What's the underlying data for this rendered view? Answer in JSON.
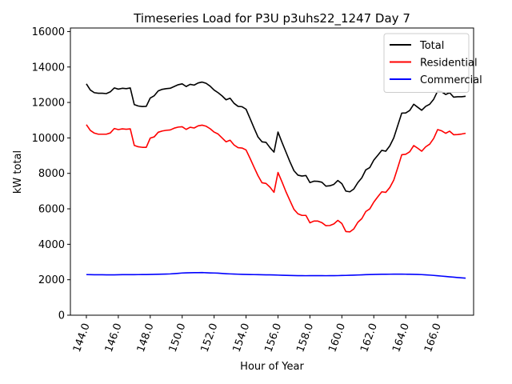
{
  "chart_data": {
    "type": "line",
    "title": "Timeseries Load for P3U p3uhs22_1247  Day 7",
    "xlabel": "Hour of Year",
    "ylabel": "kW total",
    "xlim": [
      143.0,
      168.25
    ],
    "ylim": [
      0,
      16200
    ],
    "xticks": [
      144.0,
      146.0,
      148.0,
      150.0,
      152.0,
      154.0,
      156.0,
      158.0,
      160.0,
      162.0,
      164.0,
      166.0
    ],
    "xtick_labels": [
      "144.0",
      "146.0",
      "148.0",
      "150.0",
      "152.0",
      "154.0",
      "156.0",
      "158.0",
      "160.0",
      "162.0",
      "164.0",
      "166.0"
    ],
    "yticks": [
      0,
      2000,
      4000,
      6000,
      8000,
      10000,
      12000,
      14000,
      16000
    ],
    "ytick_labels": [
      "0",
      "2000",
      "4000",
      "6000",
      "8000",
      "10000",
      "12000",
      "14000",
      "16000"
    ],
    "grid": false,
    "legend_position": "top-right",
    "x": [
      144.0,
      144.25,
      144.5,
      144.75,
      145.0,
      145.25,
      145.5,
      145.75,
      146.0,
      146.25,
      146.5,
      146.75,
      147.0,
      147.25,
      147.5,
      147.75,
      148.0,
      148.25,
      148.5,
      148.75,
      149.0,
      149.25,
      149.5,
      149.75,
      150.0,
      150.25,
      150.5,
      150.75,
      151.0,
      151.25,
      151.5,
      151.75,
      152.0,
      152.25,
      152.5,
      152.75,
      153.0,
      153.25,
      153.5,
      153.75,
      154.0,
      154.25,
      154.5,
      154.75,
      155.0,
      155.25,
      155.5,
      155.75,
      156.0,
      156.25,
      156.5,
      156.75,
      157.0,
      157.25,
      157.5,
      157.75,
      158.0,
      158.25,
      158.5,
      158.75,
      159.0,
      159.25,
      159.5,
      159.75,
      160.0,
      160.25,
      160.5,
      160.75,
      161.0,
      161.25,
      161.5,
      161.75,
      162.0,
      162.25,
      162.5,
      162.75,
      163.0,
      163.25,
      163.5,
      163.75,
      164.0,
      164.25,
      164.5,
      164.75,
      165.0,
      165.25,
      165.5,
      165.75,
      166.0,
      166.25,
      166.5,
      166.75,
      167.0,
      167.25,
      167.5,
      167.75
    ],
    "series": [
      {
        "name": "Total",
        "color": "#000000",
        "values": [
          13050,
          12700,
          12550,
          12520,
          12520,
          12500,
          12600,
          12820,
          12750,
          12800,
          12780,
          12820,
          11880,
          11800,
          11770,
          11780,
          12250,
          12380,
          12650,
          12740,
          12780,
          12800,
          12900,
          13000,
          13050,
          12900,
          13020,
          12980,
          13100,
          13150,
          13080,
          12920,
          12700,
          12550,
          12370,
          12150,
          12240,
          11950,
          11780,
          11760,
          11620,
          11100,
          10560,
          10050,
          9780,
          9750,
          9450,
          9200,
          10330,
          9750,
          9200,
          8650,
          8150,
          7900,
          7850,
          7880,
          7480,
          7560,
          7550,
          7500,
          7280,
          7300,
          7380,
          7600,
          7420,
          7000,
          6960,
          7120,
          7480,
          7750,
          8200,
          8330,
          8750,
          9020,
          9300,
          9250,
          9550,
          10000,
          10700,
          11400,
          11410,
          11550,
          11900,
          11730,
          11560,
          11780,
          11900,
          12180,
          12650,
          12600,
          12450,
          12550,
          12300,
          12320,
          12320,
          12350
        ]
      },
      {
        "name": "Residential",
        "color": "#ff0000",
        "values": [
          10750,
          10420,
          10270,
          10210,
          10210,
          10210,
          10280,
          10530,
          10470,
          10510,
          10490,
          10510,
          9580,
          9500,
          9470,
          9470,
          9990,
          10060,
          10320,
          10390,
          10430,
          10450,
          10550,
          10610,
          10630,
          10480,
          10600,
          10560,
          10680,
          10720,
          10660,
          10520,
          10330,
          10220,
          10000,
          9780,
          9870,
          9600,
          9450,
          9430,
          9320,
          8850,
          8350,
          7870,
          7470,
          7430,
          7220,
          6930,
          8050,
          7520,
          6960,
          6460,
          5970,
          5720,
          5630,
          5630,
          5210,
          5310,
          5310,
          5220,
          5050,
          5060,
          5150,
          5350,
          5170,
          4720,
          4700,
          4870,
          5240,
          5450,
          5850,
          6000,
          6380,
          6680,
          6960,
          6930,
          7200,
          7620,
          8320,
          9050,
          9080,
          9220,
          9570,
          9420,
          9250,
          9500,
          9650,
          9970,
          10470,
          10400,
          10260,
          10380,
          10180,
          10190,
          10220,
          10260
        ]
      },
      {
        "name": "Commercial",
        "color": "#0000ff",
        "values": [
          2290,
          2285,
          2280,
          2282,
          2283,
          2278,
          2275,
          2278,
          2280,
          2285,
          2285,
          2288,
          2288,
          2290,
          2292,
          2295,
          2300,
          2305,
          2310,
          2315,
          2320,
          2330,
          2345,
          2360,
          2380,
          2390,
          2395,
          2398,
          2400,
          2405,
          2395,
          2385,
          2380,
          2370,
          2355,
          2340,
          2330,
          2320,
          2312,
          2305,
          2300,
          2295,
          2290,
          2285,
          2282,
          2278,
          2275,
          2270,
          2262,
          2255,
          2250,
          2242,
          2235,
          2232,
          2230,
          2228,
          2230,
          2232,
          2232,
          2230,
          2228,
          2230,
          2232,
          2234,
          2240,
          2245,
          2252,
          2260,
          2268,
          2278,
          2288,
          2295,
          2300,
          2305,
          2308,
          2310,
          2312,
          2315,
          2316,
          2315,
          2312,
          2308,
          2303,
          2298,
          2290,
          2278,
          2262,
          2245,
          2225,
          2205,
          2185,
          2165,
          2145,
          2125,
          2105,
          2088
        ]
      }
    ]
  }
}
